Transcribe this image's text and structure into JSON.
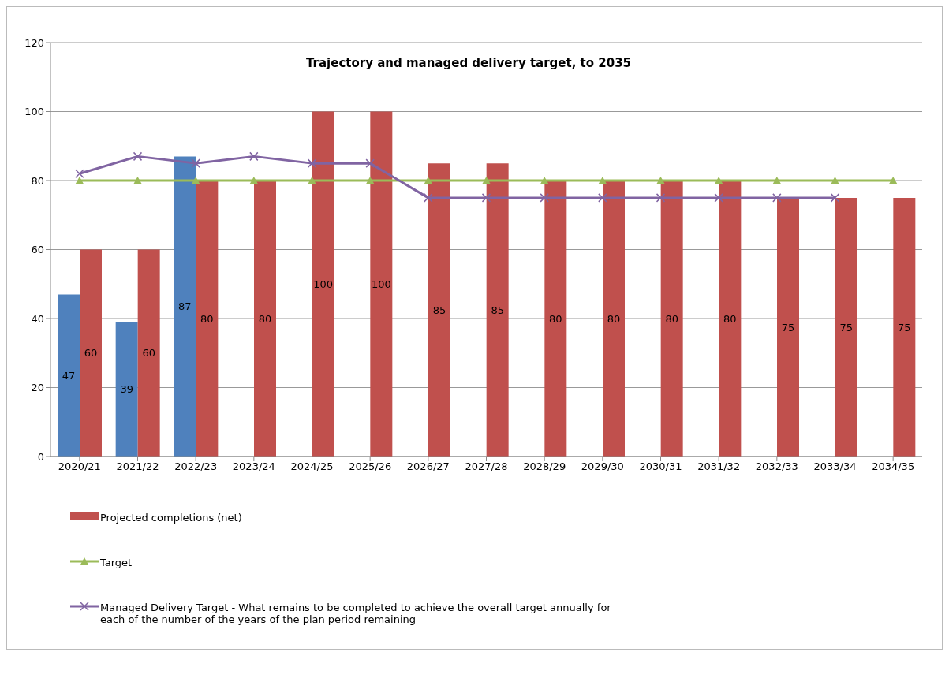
{
  "chart_data": {
    "type": "bar",
    "title": "Trajectory and managed delivery target, to 2035",
    "categories": [
      "2020/21",
      "2021/22",
      "2022/23",
      "2023/24",
      "2024/25",
      "2025/26",
      "2026/27",
      "2027/28",
      "2028/29",
      "2029/30",
      "2030/31",
      "2031/32",
      "2032/33",
      "2033/34",
      "2034/35"
    ],
    "series": [
      {
        "color": "#4f81bd",
        "values": [
          47,
          39,
          87,
          null,
          null,
          null,
          null,
          null,
          null,
          null,
          null,
          null,
          null,
          null,
          null
        ],
        "value_labels": [
          "47",
          "39",
          "87",
          null,
          null,
          null,
          null,
          null,
          null,
          null,
          null,
          null,
          null,
          null,
          null
        ]
      },
      {
        "name": "Projected completions (net)",
        "color": "#c0504d",
        "values": [
          60,
          60,
          80,
          80,
          100,
          100,
          85,
          85,
          80,
          80,
          80,
          80,
          75,
          75,
          75
        ],
        "value_labels": [
          "60",
          "60",
          "80",
          "80",
          "100",
          "100",
          "85",
          "85",
          "80",
          "80",
          "80",
          "80",
          "75",
          "75",
          "75"
        ]
      },
      {
        "type": "line",
        "name": "Target",
        "color": "#9bbb59",
        "marker": "triangle",
        "values": [
          80,
          80,
          80,
          80,
          80,
          80,
          80,
          80,
          80,
          80,
          80,
          80,
          80,
          80,
          80
        ]
      },
      {
        "type": "line",
        "name": "Managed Delivery Target - What remains to be completed to achieve the overall target annually for each of the number of the years of the plan period remaining",
        "color": "#8064a2",
        "marker": "cross",
        "values": [
          82,
          87,
          85,
          87,
          85,
          85,
          75,
          75,
          75,
          75,
          75,
          75,
          75,
          75,
          null
        ]
      }
    ],
    "ylim": [
      0,
      120
    ],
    "yticks": [
      0,
      20,
      40,
      60,
      80,
      100,
      120
    ],
    "grid": "y",
    "legend": "bottom"
  }
}
